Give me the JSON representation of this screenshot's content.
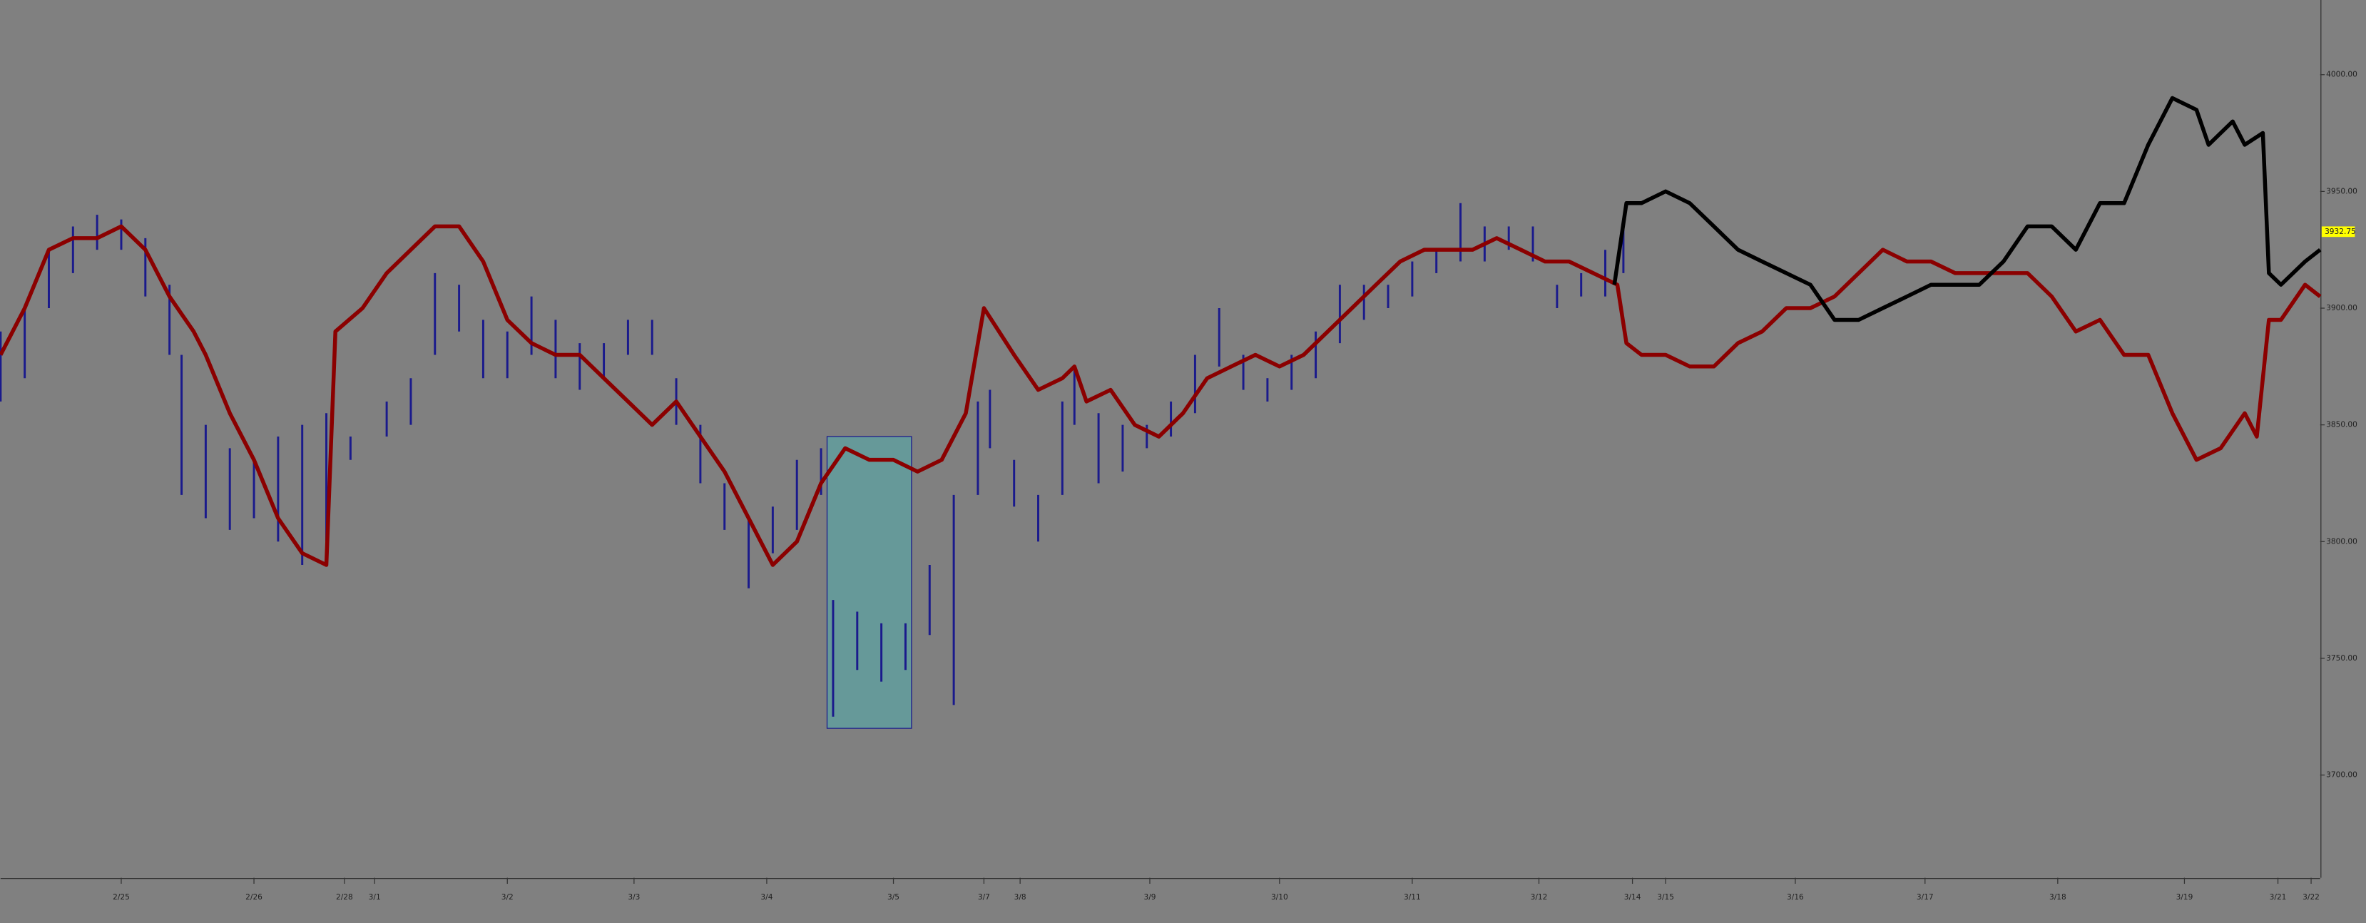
{
  "chart_data": {
    "type": "price-bars",
    "xlim": [
      0,
      769
    ],
    "ylim": [
      3656,
      4032
    ],
    "yticks": [
      {
        "value": 4000,
        "label": "4000.00"
      },
      {
        "value": 3950,
        "label": "3950.00"
      },
      {
        "value": 3900,
        "label": "3900.00"
      },
      {
        "value": 3850,
        "label": "3850.00"
      },
      {
        "value": 3800,
        "label": "3800.00"
      },
      {
        "value": 3750,
        "label": "3750.00"
      },
      {
        "value": 3700,
        "label": "3700.00"
      }
    ],
    "xticks": [
      {
        "value": 40,
        "label": "2/25"
      },
      {
        "value": 84,
        "label": "2/26"
      },
      {
        "value": 114,
        "label": "2/28"
      },
      {
        "value": 124,
        "label": "3/1"
      },
      {
        "value": 168,
        "label": "3/2"
      },
      {
        "value": 210,
        "label": "3/3"
      },
      {
        "value": 254,
        "label": "3/4"
      },
      {
        "value": 296,
        "label": "3/5"
      },
      {
        "value": 326,
        "label": "3/7"
      },
      {
        "value": 338,
        "label": "3/8"
      },
      {
        "value": 381,
        "label": "3/9"
      },
      {
        "value": 424,
        "label": "3/10"
      },
      {
        "value": 468,
        "label": "3/11"
      },
      {
        "value": 510,
        "label": "3/12"
      },
      {
        "value": 541,
        "label": "3/14"
      },
      {
        "value": 552,
        "label": "3/15"
      },
      {
        "value": 595,
        "label": "3/16"
      },
      {
        "value": 638,
        "label": "3/17"
      },
      {
        "value": 682,
        "label": "3/18"
      },
      {
        "value": 724,
        "label": "3/19"
      },
      {
        "value": 755,
        "label": "3/21"
      },
      {
        "value": 766,
        "label": "3/22"
      }
    ],
    "last_price": 3932.75,
    "last_price_color": "#ffff00",
    "shaded_region": {
      "x": [
        274,
        302
      ],
      "y": [
        3720,
        3845
      ],
      "color": "#5f9f9f"
    },
    "bars": {
      "color": "#1a1a8c",
      "x": [
        0,
        8,
        16,
        24,
        32,
        40,
        48,
        56,
        60,
        68,
        76,
        84,
        92,
        100,
        108,
        116,
        128,
        136,
        144,
        152,
        160,
        168,
        176,
        184,
        192,
        200,
        208,
        216,
        224,
        232,
        240,
        248,
        256,
        264,
        272,
        276,
        284,
        292,
        300,
        308,
        316,
        324,
        328,
        336,
        344,
        352,
        356,
        364,
        372,
        380,
        388,
        396,
        404,
        412,
        420,
        428,
        436,
        444,
        452,
        460,
        468,
        476,
        484,
        492,
        500,
        508,
        516,
        524,
        532,
        538
      ],
      "high": [
        3890,
        3900,
        3925,
        3935,
        3940,
        3938,
        3930,
        3910,
        3880,
        3850,
        3840,
        3835,
        3845,
        3850,
        3855,
        3845,
        3860,
        3870,
        3915,
        3910,
        3895,
        3890,
        3905,
        3895,
        3885,
        3885,
        3895,
        3895,
        3870,
        3850,
        3825,
        3810,
        3815,
        3835,
        3840,
        3775,
        3770,
        3765,
        3765,
        3790,
        3820,
        3860,
        3865,
        3835,
        3820,
        3860,
        3875,
        3855,
        3850,
        3850,
        3860,
        3880,
        3900,
        3880,
        3870,
        3880,
        3890,
        3910,
        3910,
        3910,
        3920,
        3925,
        3945,
        3935,
        3935,
        3935,
        3910,
        3915,
        3925,
        3935
      ],
      "low": [
        3860,
        3870,
        3900,
        3915,
        3925,
        3925,
        3905,
        3880,
        3820,
        3810,
        3805,
        3810,
        3800,
        3790,
        3800,
        3835,
        3845,
        3850,
        3880,
        3890,
        3870,
        3870,
        3880,
        3870,
        3865,
        3870,
        3880,
        3880,
        3850,
        3825,
        3805,
        3780,
        3795,
        3805,
        3820,
        3725,
        3745,
        3740,
        3745,
        3760,
        3730,
        3820,
        3840,
        3815,
        3800,
        3820,
        3850,
        3825,
        3830,
        3840,
        3845,
        3855,
        3875,
        3865,
        3860,
        3865,
        3870,
        3885,
        3895,
        3900,
        3905,
        3915,
        3920,
        3920,
        3925,
        3920,
        3900,
        3905,
        3905,
        3915
      ]
    },
    "series": [
      {
        "color": "#8b0000",
        "x": [
          0,
          8,
          16,
          24,
          32,
          40,
          48,
          56,
          64,
          68,
          76,
          84,
          92,
          100,
          108,
          111,
          120,
          128,
          136,
          144,
          152,
          160,
          168,
          176,
          184,
          192,
          200,
          208,
          216,
          224,
          232,
          240,
          248,
          256,
          264,
          272,
          280,
          288,
          296,
          304,
          312,
          320,
          326,
          336,
          344,
          352,
          356,
          360,
          368,
          376,
          384,
          392,
          400,
          408,
          416,
          424,
          432,
          440,
          448,
          456,
          464,
          472,
          480,
          488,
          496,
          504,
          512,
          520,
          528,
          536,
          539,
          544,
          552,
          560,
          568,
          576,
          584,
          592,
          600,
          608,
          616,
          624,
          632,
          640,
          648,
          656,
          664,
          672,
          680,
          688,
          696,
          704,
          712,
          720,
          728,
          736,
          744,
          748,
          752,
          756,
          764,
          769
        ],
        "values": [
          3880,
          3900,
          3925,
          3930,
          3930,
          3935,
          3925,
          3905,
          3890,
          3880,
          3855,
          3835,
          3810,
          3795,
          3790,
          3890,
          3900,
          3915,
          3925,
          3935,
          3935,
          3920,
          3895,
          3885,
          3880,
          3880,
          3870,
          3860,
          3850,
          3860,
          3845,
          3830,
          3810,
          3790,
          3800,
          3825,
          3840,
          3835,
          3835,
          3830,
          3835,
          3855,
          3900,
          3880,
          3865,
          3870,
          3875,
          3860,
          3865,
          3850,
          3845,
          3855,
          3870,
          3875,
          3880,
          3875,
          3880,
          3890,
          3900,
          3910,
          3920,
          3925,
          3925,
          3925,
          3930,
          3925,
          3920,
          3920,
          3915,
          3910,
          3885,
          3880,
          3880,
          3875,
          3875,
          3885,
          3890,
          3900,
          3900,
          3905,
          3915,
          3925,
          3920,
          3920,
          3915,
          3915,
          3915,
          3915,
          3905,
          3890,
          3895,
          3880,
          3880,
          3855,
          3835,
          3840,
          3855,
          3845,
          3895,
          3895,
          3910,
          3905
        ]
      },
      {
        "color": "#000000",
        "x": [
          535,
          539,
          544,
          552,
          560,
          568,
          576,
          584,
          592,
          600,
          608,
          616,
          624,
          632,
          640,
          648,
          656,
          664,
          672,
          680,
          688,
          696,
          704,
          712,
          720,
          728,
          732,
          740,
          744,
          750,
          752,
          756,
          764,
          769
        ],
        "values": [
          3910,
          3945,
          3945,
          3950,
          3945,
          3935,
          3925,
          3920,
          3915,
          3910,
          3895,
          3895,
          3900,
          3905,
          3910,
          3910,
          3910,
          3920,
          3935,
          3935,
          3925,
          3945,
          3945,
          3970,
          3990,
          3985,
          3970,
          3980,
          3970,
          3975,
          3915,
          3910,
          3920,
          3925
        ]
      }
    ]
  }
}
